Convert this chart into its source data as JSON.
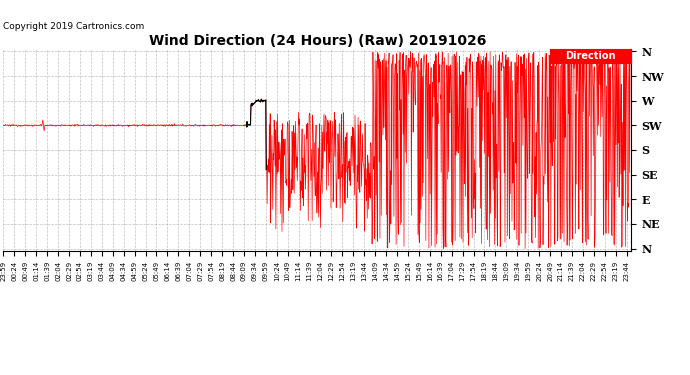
{
  "title": "Wind Direction (24 Hours) (Raw) 20191026",
  "copyright": "Copyright 2019 Cartronics.com",
  "line_color": "red",
  "bg_color": "white",
  "grid_color": "#999999",
  "legend_label": "Direction",
  "legend_bg": "red",
  "legend_fg": "white",
  "ytick_labels": [
    "N",
    "NE",
    "E",
    "SE",
    "S",
    "SW",
    "W",
    "NW",
    "N"
  ],
  "ytick_values": [
    0,
    45,
    90,
    135,
    180,
    225,
    270,
    315,
    360
  ],
  "xtick_start": -1,
  "xtick_interval": 25,
  "xlim": [
    -1,
    1435
  ],
  "ylim": [
    -5,
    365
  ]
}
